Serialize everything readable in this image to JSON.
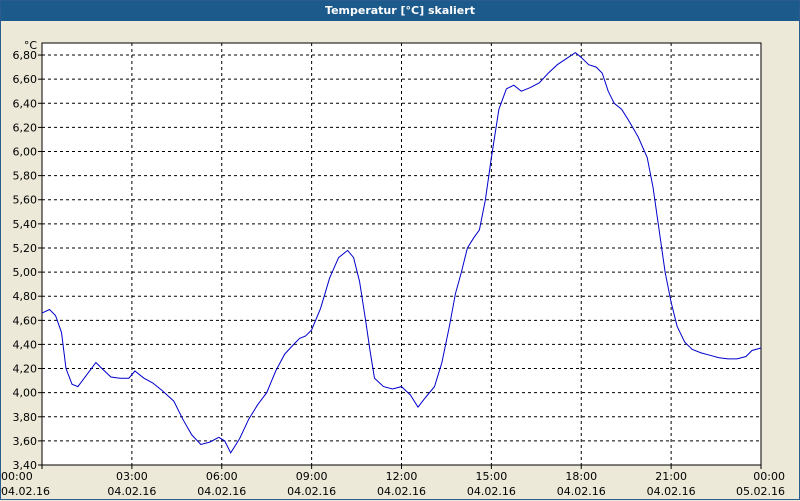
{
  "window": {
    "title": "Temperatur [°C] skaliert"
  },
  "chart_data": {
    "type": "line",
    "title": "Temperatur [°C] skaliert",
    "ylabel": "°C",
    "xlabel": "",
    "ylim": [
      3.4,
      6.9
    ],
    "xlim_hours": [
      0,
      24
    ],
    "grid": true,
    "y_ticks": [
      "3,40",
      "3,60",
      "3,80",
      "4,00",
      "4,20",
      "4,40",
      "4,60",
      "4,80",
      "5,00",
      "5,20",
      "5,40",
      "5,60",
      "5,80",
      "6,00",
      "6,20",
      "6,40",
      "6,60",
      "6,80"
    ],
    "y_tick_values": [
      3.4,
      3.6,
      3.8,
      4.0,
      4.2,
      4.4,
      4.6,
      4.8,
      5.0,
      5.2,
      5.4,
      5.6,
      5.8,
      6.0,
      6.2,
      6.4,
      6.6,
      6.8
    ],
    "x_ticks": [
      {
        "time": "00:00",
        "date": "04.02.16",
        "hour": 0
      },
      {
        "time": "03:00",
        "date": "04.02.16",
        "hour": 3
      },
      {
        "time": "06:00",
        "date": "04.02.16",
        "hour": 6
      },
      {
        "time": "09:00",
        "date": "04.02.16",
        "hour": 9
      },
      {
        "time": "12:00",
        "date": "04.02.16",
        "hour": 12
      },
      {
        "time": "15:00",
        "date": "04.02.16",
        "hour": 15
      },
      {
        "time": "18:00",
        "date": "04.02.16",
        "hour": 18
      },
      {
        "time": "21:00",
        "date": "04.02.16",
        "hour": 21
      },
      {
        "time": "00:00",
        "date": "05.02.16",
        "hour": 24
      }
    ],
    "series": [
      {
        "color": "#0000cc",
        "points": [
          [
            0.0,
            4.66
          ],
          [
            0.25,
            4.69
          ],
          [
            0.45,
            4.64
          ],
          [
            0.65,
            4.5
          ],
          [
            0.8,
            4.2
          ],
          [
            1.0,
            4.07
          ],
          [
            1.2,
            4.05
          ],
          [
            1.5,
            4.15
          ],
          [
            1.8,
            4.25
          ],
          [
            2.0,
            4.2
          ],
          [
            2.3,
            4.13
          ],
          [
            2.6,
            4.12
          ],
          [
            2.9,
            4.12
          ],
          [
            3.1,
            4.18
          ],
          [
            3.4,
            4.12
          ],
          [
            3.7,
            4.08
          ],
          [
            4.0,
            4.02
          ],
          [
            4.4,
            3.93
          ],
          [
            4.7,
            3.78
          ],
          [
            5.0,
            3.65
          ],
          [
            5.3,
            3.57
          ],
          [
            5.6,
            3.59
          ],
          [
            5.9,
            3.63
          ],
          [
            6.1,
            3.6
          ],
          [
            6.3,
            3.5
          ],
          [
            6.6,
            3.62
          ],
          [
            6.9,
            3.78
          ],
          [
            7.2,
            3.9
          ],
          [
            7.5,
            4.0
          ],
          [
            7.8,
            4.18
          ],
          [
            8.1,
            4.32
          ],
          [
            8.4,
            4.4
          ],
          [
            8.6,
            4.45
          ],
          [
            8.8,
            4.47
          ],
          [
            9.0,
            4.52
          ],
          [
            9.3,
            4.7
          ],
          [
            9.6,
            4.95
          ],
          [
            9.9,
            5.12
          ],
          [
            10.2,
            5.18
          ],
          [
            10.4,
            5.12
          ],
          [
            10.6,
            4.92
          ],
          [
            10.8,
            4.6
          ],
          [
            10.95,
            4.35
          ],
          [
            11.1,
            4.12
          ],
          [
            11.4,
            4.05
          ],
          [
            11.7,
            4.03
          ],
          [
            12.0,
            4.05
          ],
          [
            12.3,
            3.98
          ],
          [
            12.55,
            3.88
          ],
          [
            12.8,
            3.96
          ],
          [
            13.1,
            4.05
          ],
          [
            13.35,
            4.25
          ],
          [
            13.6,
            4.55
          ],
          [
            13.8,
            4.82
          ],
          [
            14.0,
            5.0
          ],
          [
            14.2,
            5.2
          ],
          [
            14.4,
            5.28
          ],
          [
            14.6,
            5.35
          ],
          [
            14.8,
            5.6
          ],
          [
            15.0,
            5.95
          ],
          [
            15.25,
            6.35
          ],
          [
            15.5,
            6.52
          ],
          [
            15.75,
            6.55
          ],
          [
            16.0,
            6.5
          ],
          [
            16.3,
            6.53
          ],
          [
            16.6,
            6.57
          ],
          [
            16.9,
            6.65
          ],
          [
            17.2,
            6.72
          ],
          [
            17.5,
            6.77
          ],
          [
            17.8,
            6.82
          ],
          [
            18.0,
            6.78
          ],
          [
            18.25,
            6.72
          ],
          [
            18.5,
            6.7
          ],
          [
            18.7,
            6.65
          ],
          [
            18.9,
            6.5
          ],
          [
            19.1,
            6.4
          ],
          [
            19.35,
            6.35
          ],
          [
            19.6,
            6.25
          ],
          [
            19.9,
            6.12
          ],
          [
            20.2,
            5.95
          ],
          [
            20.4,
            5.7
          ],
          [
            20.6,
            5.35
          ],
          [
            20.8,
            5.0
          ],
          [
            21.0,
            4.75
          ],
          [
            21.2,
            4.55
          ],
          [
            21.45,
            4.42
          ],
          [
            21.7,
            4.36
          ],
          [
            22.0,
            4.33
          ],
          [
            22.3,
            4.31
          ],
          [
            22.6,
            4.29
          ],
          [
            22.9,
            4.28
          ],
          [
            23.2,
            4.28
          ],
          [
            23.5,
            4.3
          ],
          [
            23.7,
            4.35
          ],
          [
            24.0,
            4.37
          ]
        ]
      }
    ]
  }
}
